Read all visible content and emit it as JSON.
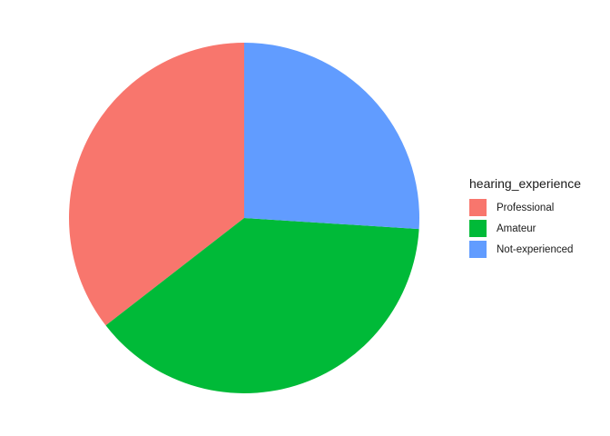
{
  "chart_data": {
    "type": "pie",
    "title": "",
    "legend_title": "hearing_experience",
    "legend_position": "right",
    "start_angle_deg": 0,
    "direction": "counterclockwise",
    "slices": [
      {
        "label": "Professional",
        "value": 35.5,
        "color": "#F8766D"
      },
      {
        "label": "Amateur",
        "value": 38.5,
        "color": "#00BA38"
      },
      {
        "label": "Not-experienced",
        "value": 26.0,
        "color": "#619CFF"
      }
    ]
  }
}
